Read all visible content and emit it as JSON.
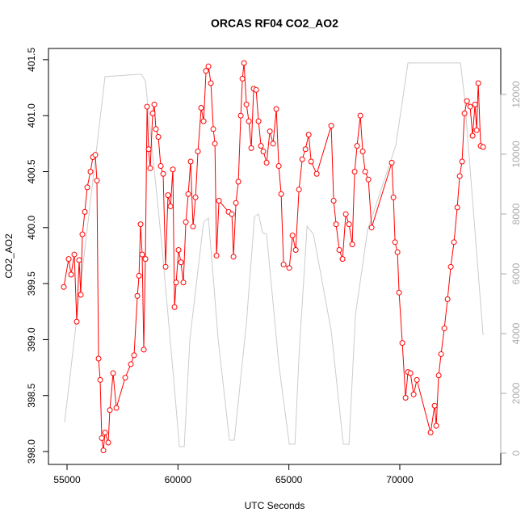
{
  "chart_data": {
    "type": "line",
    "title": "ORCAS RF04 CO2_AO2",
    "xlabel": "UTC Seconds",
    "ylabel": "CO2_AO2",
    "xlim": [
      54162,
      74552
    ],
    "ylim": [
      397.885,
      401.6
    ],
    "y2lim": [
      -378,
      13540
    ],
    "xticks": [
      55000,
      60000,
      65000,
      70000
    ],
    "yticks": [
      {
        "value": 398,
        "label": "398.0"
      },
      {
        "value": 398.5,
        "label": "398.5"
      },
      {
        "value": 399,
        "label": "399.0"
      },
      {
        "value": 399.5,
        "label": "399.5"
      },
      {
        "value": 400,
        "label": "400.0"
      },
      {
        "value": 400.5,
        "label": "400.5"
      },
      {
        "value": 401,
        "label": "401.0"
      },
      {
        "value": 401.5,
        "label": "401.5"
      }
    ],
    "y2ticks": [
      0,
      2000,
      4000,
      6000,
      8000,
      10000,
      12000
    ],
    "series": [
      {
        "color": "#cccccc",
        "axis": "y2",
        "markers": false,
        "x": [
          54890,
          56712,
          58351,
          58533,
          59261,
          59808,
          60063,
          60281,
          60536,
          61155,
          61374,
          61811,
          62321,
          62539,
          63086,
          63450,
          63632,
          63814,
          63996,
          64543,
          65018,
          65273,
          65455,
          65819,
          66110,
          66909,
          67456,
          67710,
          68002,
          68548,
          69094,
          69822,
          70369,
          70915,
          72736,
          72918,
          73756
        ],
        "values": [
          1027,
          12596,
          12677,
          12460,
          7055,
          2460,
          216,
          216,
          3811,
          7731,
          7866,
          3811,
          432,
          432,
          4352,
          7920,
          8001,
          7379,
          7325,
          3000,
          297,
          297,
          3271,
          7595,
          7325,
          4082,
          297,
          297,
          4622,
          7460,
          8677,
          10298,
          13056,
          13056,
          13056,
          11920,
          3946
        ]
      },
      {
        "color": "#ff0000",
        "axis": "y",
        "markers": true,
        "x": [
          54854,
          55073,
          55182,
          55328,
          55437,
          55546,
          55619,
          55692,
          55801,
          55910,
          56056,
          56165,
          56275,
          56348,
          56421,
          56494,
          56566,
          56639,
          56712,
          56858,
          56931,
          57076,
          57222,
          57622,
          57877,
          58023,
          58169,
          58242,
          58314,
          58387,
          58460,
          58533,
          58606,
          58678,
          58751,
          58860,
          58933,
          59006,
          59115,
          59224,
          59334,
          59443,
          59552,
          59662,
          59771,
          59844,
          59917,
          60026,
          60135,
          60244,
          60354,
          60463,
          60572,
          60681,
          60791,
          60900,
          61046,
          61155,
          61264,
          61374,
          61483,
          61592,
          61665,
          61738,
          61847,
          62284,
          62430,
          62503,
          62612,
          62721,
          62831,
          62904,
          62977,
          63086,
          63195,
          63304,
          63414,
          63523,
          63632,
          63741,
          63850,
          63996,
          64142,
          64287,
          64433,
          64543,
          64652,
          64761,
          65018,
          65164,
          65309,
          65455,
          65601,
          65746,
          65892,
          66001,
          66254,
          66909,
          67018,
          67128,
          67273,
          67419,
          67565,
          67710,
          67856,
          67965,
          68075,
          68220,
          68329,
          68439,
          68584,
          68730,
          69640,
          69713,
          69786,
          69896,
          69968,
          70114,
          70260,
          70369,
          70479,
          70624,
          70770,
          71389,
          71571,
          71643,
          71753,
          71862,
          72008,
          72154,
          72299,
          72445,
          72591,
          72700,
          72809,
          72918,
          73028,
          73173,
          73282,
          73392,
          73464,
          73537,
          73646,
          73756
        ],
        "values": [
          399.47,
          399.72,
          399.58,
          399.76,
          399.16,
          399.71,
          399.4,
          399.94,
          400.14,
          400.36,
          400.5,
          400.63,
          400.65,
          400.42,
          398.83,
          398.64,
          398.12,
          398.01,
          398.17,
          398.08,
          398.37,
          398.7,
          398.39,
          398.66,
          398.78,
          398.86,
          399.39,
          399.57,
          400.03,
          399.76,
          398.91,
          399.72,
          401.08,
          400.7,
          400.53,
          401.02,
          401.1,
          400.88,
          400.81,
          400.55,
          400.48,
          399.65,
          400.29,
          400.19,
          400.52,
          399.29,
          399.51,
          399.8,
          399.69,
          399.51,
          400.05,
          400.3,
          400.59,
          400.01,
          400.27,
          400.68,
          401.07,
          400.95,
          401.4,
          401.44,
          401.29,
          400.88,
          400.75,
          399.75,
          400.24,
          400.14,
          400.12,
          399.74,
          400.22,
          400.41,
          401,
          401.33,
          401.47,
          401.1,
          400.95,
          400.71,
          401.24,
          401.23,
          400.95,
          400.73,
          400.68,
          400.58,
          400.86,
          400.75,
          401.06,
          400.55,
          400.3,
          399.67,
          399.64,
          399.93,
          399.8,
          400.34,
          400.61,
          400.7,
          400.83,
          400.59,
          400.48,
          400.91,
          400.24,
          400.03,
          399.8,
          399.72,
          400.12,
          400.03,
          399.85,
          400.5,
          400.73,
          401,
          400.68,
          400.5,
          400.43,
          400,
          400.58,
          400.27,
          399.87,
          399.78,
          399.42,
          398.97,
          398.48,
          398.71,
          398.7,
          398.51,
          398.64,
          398.17,
          398.41,
          398.23,
          398.68,
          398.87,
          399.1,
          399.36,
          399.65,
          399.87,
          400.18,
          400.46,
          400.59,
          401.02,
          401.13,
          401.08,
          400.82,
          401.1,
          400.87,
          401.29,
          400.73,
          400.72
        ]
      }
    ]
  }
}
